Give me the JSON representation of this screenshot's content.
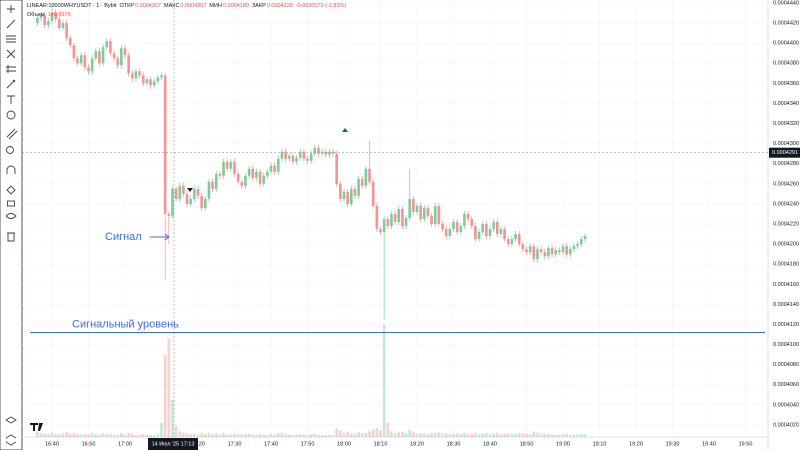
{
  "header": {
    "symbol": "LINEAR:10000WHYUSDT · 1 · Bybit",
    "fields": [
      {
        "label": "ОТКР",
        "value": "0.0004307"
      },
      {
        "label": "МАКС",
        "value": "0.0004307"
      },
      {
        "label": "МИН",
        "value": "0.0004180"
      },
      {
        "label": "ЗАКР",
        "value": "0.0004228"
      }
    ],
    "change": "-0.0000079 (-1.83%)",
    "volume_label": "Объем",
    "volume_value": "140.897K"
  },
  "chart_data": {
    "type": "candlestick",
    "up_color": "#7ccc9c",
    "down_color": "#f29494",
    "ylim": [
      0.0004008,
      0.0004443
    ],
    "yticks": [
      {
        "value": 0.000444,
        "label": "0.0004440"
      },
      {
        "value": 0.000442,
        "label": "0.0004420"
      },
      {
        "value": 0.00044,
        "label": "0.0004400"
      },
      {
        "value": 0.000438,
        "label": "0.0004380"
      },
      {
        "value": 0.000436,
        "label": "0.0004360"
      },
      {
        "value": 0.000434,
        "label": "0.0004340"
      },
      {
        "value": 0.000432,
        "label": "0.0004320"
      },
      {
        "value": 0.00043,
        "label": "0.0004300"
      },
      {
        "value": 0.000428,
        "label": "0.0004280"
      },
      {
        "value": 0.000426,
        "label": "0.0004260"
      },
      {
        "value": 0.000424,
        "label": "0.0004240"
      },
      {
        "value": 0.000422,
        "label": "0.0004220"
      },
      {
        "value": 0.00042,
        "label": "0.0004200"
      },
      {
        "value": 0.000418,
        "label": "0.0004180"
      },
      {
        "value": 0.000416,
        "label": "0.0004160"
      },
      {
        "value": 0.000414,
        "label": "0.0004140"
      },
      {
        "value": 0.000412,
        "label": "0.0004120"
      },
      {
        "value": 0.00041,
        "label": "0.0004100"
      },
      {
        "value": 0.000408,
        "label": "0.0004080"
      },
      {
        "value": 0.000406,
        "label": "0.0004060"
      },
      {
        "value": 0.000404,
        "label": "0.0004040"
      },
      {
        "value": 0.000402,
        "label": "0.0004020"
      }
    ],
    "xticks": [
      "16:40",
      "16:50",
      "17:00",
      "17:20",
      "17:30",
      "17:40",
      "17:50",
      "18:00",
      "18:10",
      "18:20",
      "18:30",
      "18:40",
      "18:50",
      "19:00",
      "19:10",
      "19:20",
      "19:30",
      "19:40",
      "19:50"
    ],
    "crosshair_label": "14 Июл '25   17:13",
    "last_price": {
      "value": 0.0004291,
      "label": "0.0004291"
    },
    "annotations": [
      {
        "text": "Сигнал"
      },
      {
        "text": "Сигнальный уровень",
        "value": 0.0004112
      }
    ],
    "x": [
      "16:36",
      "16:37",
      "16:38",
      "16:39",
      "16:40",
      "16:41",
      "16:42",
      "16:43",
      "16:44",
      "16:45",
      "16:46",
      "16:47",
      "16:48",
      "16:49",
      "16:50",
      "16:51",
      "16:52",
      "16:53",
      "16:54",
      "16:55",
      "16:56",
      "16:57",
      "16:58",
      "16:59",
      "17:00",
      "17:01",
      "17:02",
      "17:03",
      "17:04",
      "17:05",
      "17:06",
      "17:07",
      "17:08",
      "17:09",
      "17:10",
      "17:11",
      "17:12",
      "17:13",
      "17:14",
      "17:15",
      "17:16",
      "17:17",
      "17:18",
      "17:19",
      "17:20",
      "17:21",
      "17:22",
      "17:23",
      "17:24",
      "17:25",
      "17:26",
      "17:27",
      "17:28",
      "17:29",
      "17:30",
      "17:31",
      "17:32",
      "17:33",
      "17:34",
      "17:35",
      "17:36",
      "17:37",
      "17:38",
      "17:39",
      "17:40",
      "17:41",
      "17:42",
      "17:43",
      "17:44",
      "17:45",
      "17:46",
      "17:47",
      "17:48",
      "17:49",
      "17:50",
      "17:51",
      "17:52",
      "17:53",
      "17:54",
      "17:55",
      "17:56",
      "17:57",
      "17:58",
      "17:59",
      "18:00",
      "18:01",
      "18:02",
      "18:03",
      "18:04",
      "18:05",
      "18:06",
      "18:07",
      "18:08",
      "18:09",
      "18:10",
      "18:11",
      "18:12",
      "18:13",
      "18:14",
      "18:15",
      "18:16",
      "18:17",
      "18:18",
      "18:19",
      "18:20",
      "18:21",
      "18:22",
      "18:23",
      "18:24",
      "18:25",
      "18:26",
      "18:27",
      "18:28",
      "18:29",
      "18:30",
      "18:31",
      "18:32",
      "18:33",
      "18:34",
      "18:35",
      "18:36",
      "18:37",
      "18:38",
      "18:39",
      "18:40",
      "18:41",
      "18:42",
      "18:43",
      "18:44",
      "18:45",
      "18:46",
      "18:47",
      "18:48",
      "18:49",
      "18:50",
      "18:51",
      "18:52",
      "18:53",
      "18:54",
      "18:55",
      "18:56",
      "18:57",
      "18:58",
      "18:59",
      "19:00",
      "19:01",
      "19:02",
      "19:03",
      "19:04",
      "19:05",
      "19:06"
    ],
    "open": [
      0.000442,
      0.0004425,
      0.0004428,
      0.0004418,
      0.0004422,
      0.000443,
      0.0004424,
      0.0004415,
      0.000442,
      0.0004405,
      0.0004398,
      0.0004385,
      0.000438,
      0.0004388,
      0.0004376,
      0.0004372,
      0.0004385,
      0.0004392,
      0.000438,
      0.0004396,
      0.0004402,
      0.000439,
      0.0004385,
      0.0004378,
      0.0004395,
      0.0004388,
      0.000437,
      0.0004365,
      0.0004372,
      0.0004368,
      0.000436,
      0.0004364,
      0.0004358,
      0.0004362,
      0.0004366,
      0.0004368,
      0.000423,
      0.0004228,
      0.0004255,
      0.0004245,
      0.0004258,
      0.000425,
      0.000424,
      0.0004245,
      0.0004255,
      0.0004248,
      0.0004236,
      0.0004245,
      0.0004262,
      0.0004255,
      0.000427,
      0.0004268,
      0.0004282,
      0.0004275,
      0.0004282,
      0.000427,
      0.0004262,
      0.0004258,
      0.0004268,
      0.0004275,
      0.0004266,
      0.0004272,
      0.000426,
      0.0004268,
      0.0004272,
      0.0004278,
      0.0004272,
      0.0004285,
      0.0004292,
      0.0004285,
      0.0004288,
      0.0004282,
      0.0004286,
      0.0004292,
      0.0004285,
      0.0004283,
      0.000429,
      0.0004296,
      0.000429,
      0.0004292,
      0.0004289,
      0.0004292,
      0.000429,
      0.000426,
      0.0004245,
      0.0004252,
      0.000424,
      0.0004255,
      0.0004248,
      0.0004265,
      0.0004258,
      0.0004275,
      0.0004262,
      0.0004238,
      0.0004215,
      0.0004212,
      0.0004225,
      0.0004218,
      0.000423,
      0.0004222,
      0.0004235,
      0.0004218,
      0.0004226,
      0.0004245,
      0.0004232,
      0.0004238,
      0.0004225,
      0.0004236,
      0.0004228,
      0.000422,
      0.0004238,
      0.000422,
      0.0004215,
      0.0004208,
      0.0004215,
      0.0004222,
      0.0004212,
      0.0004218,
      0.000423,
      0.0004225,
      0.0004218,
      0.0004205,
      0.0004212,
      0.000422,
      0.0004208,
      0.0004215,
      0.0004222,
      0.000421,
      0.0004215,
      0.0004205,
      0.00042,
      0.0004205,
      0.000421,
      0.00042,
      0.0004195,
      0.0004192,
      0.0004198,
      0.0004185,
      0.0004195,
      0.0004192,
      0.0004188,
      0.0004196,
      0.000419,
      0.0004194,
      0.0004192,
      0.0004198,
      0.000419,
      0.0004195,
      0.0004198,
      0.00042,
      0.0004205
    ],
    "high": [
      0.0004428,
      0.0004431,
      0.0004431,
      0.0004425,
      0.000444,
      0.0004433,
      0.0004427,
      0.0004423,
      0.0004423,
      0.0004408,
      0.0004401,
      0.0004388,
      0.0004391,
      0.0004391,
      0.0004379,
      0.0004388,
      0.0004395,
      0.0004395,
      0.0004399,
      0.0004405,
      0.0004405,
      0.0004393,
      0.0004388,
      0.0004398,
      0.0004398,
      0.0004391,
      0.0004373,
      0.0004375,
      0.0004375,
      0.0004371,
      0.0004367,
      0.0004367,
      0.0004365,
      0.0004369,
      0.0004371,
      0.000437,
      0.0004233,
      0.0004258,
      0.0004258,
      0.0004261,
      0.0004261,
      0.0004253,
      0.0004248,
      0.0004258,
      0.0004258,
      0.0004251,
      0.0004248,
      0.0004265,
      0.0004265,
      0.0004273,
      0.0004273,
      0.0004285,
      0.0004285,
      0.0004285,
      0.0004285,
      0.0004273,
      0.0004265,
      0.0004271,
      0.0004278,
      0.0004278,
      0.0004275,
      0.0004275,
      0.0004271,
      0.0004275,
      0.0004281,
      0.0004281,
      0.0004288,
      0.0004295,
      0.0004295,
      0.0004291,
      0.0004291,
      0.0004289,
      0.0004295,
      0.0004295,
      0.0004288,
      0.0004293,
      0.0004299,
      0.0004299,
      0.0004295,
      0.0004295,
      0.0004295,
      0.0004295,
      0.0004293,
      0.0004263,
      0.0004255,
      0.0004255,
      0.0004258,
      0.0004258,
      0.0004268,
      0.0004268,
      0.0004278,
      0.0004303,
      0.0004265,
      0.0004241,
      0.0004218,
      0.0004228,
      0.0004228,
      0.0004233,
      0.0004233,
      0.0004238,
      0.0004238,
      0.0004229,
      0.0004275,
      0.0004248,
      0.0004241,
      0.0004241,
      0.0004239,
      0.0004239,
      0.0004231,
      0.0004241,
      0.0004241,
      0.0004223,
      0.0004218,
      0.0004218,
      0.0004225,
      0.0004225,
      0.0004221,
      0.0004233,
      0.0004233,
      0.0004228,
      0.0004221,
      0.0004215,
      0.0004223,
      0.0004223,
      0.0004218,
      0.0004225,
      0.0004225,
      0.0004218,
      0.0004218,
      0.0004208,
      0.0004208,
      0.0004213,
      0.0004213,
      0.0004203,
      0.0004198,
      0.0004201,
      0.0004201,
      0.0004198,
      0.0004198,
      0.0004195,
      0.0004199,
      0.0004199,
      0.0004197,
      0.0004197,
      0.0004201,
      0.0004201,
      0.0004198,
      0.0004201,
      0.0004203,
      0.0004208,
      0.0004211
    ],
    "low": [
      0.0004417,
      0.0004422,
      0.0004415,
      0.0004415,
      0.0004419,
      0.0004421,
      0.0004412,
      0.0004412,
      0.0004402,
      0.0004395,
      0.0004382,
      0.0004377,
      0.0004377,
      0.0004373,
      0.0004369,
      0.0004369,
      0.0004382,
      0.0004377,
      0.0004377,
      0.0004393,
      0.0004387,
      0.0004382,
      0.0004375,
      0.0004375,
      0.0004385,
      0.0004367,
      0.0004362,
      0.0004362,
      0.0004365,
      0.0004357,
      0.0004357,
      0.0004355,
      0.0004355,
      0.0004359,
      0.0004363,
      0.0004165,
      0.00042,
      0.0004225,
      0.0004242,
      0.0004242,
      0.0004247,
      0.0004237,
      0.0004237,
      0.0004242,
      0.0004245,
      0.0004233,
      0.0004233,
      0.0004242,
      0.0004252,
      0.0004252,
      0.0004265,
      0.0004265,
      0.0004272,
      0.0004272,
      0.0004267,
      0.0004259,
      0.0004255,
      0.0004255,
      0.0004265,
      0.0004263,
      0.0004263,
      0.0004257,
      0.0004257,
      0.0004265,
      0.0004269,
      0.0004269,
      0.0004269,
      0.0004282,
      0.0004282,
      0.0004282,
      0.0004279,
      0.0004279,
      0.0004283,
      0.0004282,
      0.000428,
      0.000428,
      0.0004287,
      0.0004287,
      0.0004287,
      0.0004286,
      0.0004286,
      0.0004287,
      0.0004257,
      0.0004242,
      0.0004242,
      0.0004237,
      0.0004237,
      0.0004245,
      0.0004245,
      0.0004255,
      0.0004255,
      0.0004259,
      0.0004235,
      0.0004212,
      0.0004209,
      0.0004125,
      0.0004215,
      0.0004215,
      0.0004219,
      0.0004219,
      0.0004215,
      0.0004215,
      0.0004223,
      0.0004229,
      0.0004229,
      0.0004222,
      0.0004222,
      0.0004225,
      0.0004217,
      0.0004217,
      0.0004217,
      0.0004212,
      0.0004205,
      0.0004205,
      0.0004212,
      0.0004209,
      0.0004209,
      0.0004215,
      0.0004222,
      0.0004215,
      0.0004202,
      0.0004202,
      0.0004209,
      0.0004205,
      0.0004205,
      0.0004212,
      0.0004207,
      0.0004207,
      0.0004202,
      0.0004197,
      0.0004197,
      0.0004202,
      0.0004197,
      0.0004192,
      0.0004189,
      0.0004189,
      0.0004182,
      0.0004182,
      0.0004189,
      0.0004185,
      0.0004185,
      0.0004187,
      0.0004187,
      0.0004189,
      0.0004189,
      0.0004187,
      0.0004187,
      0.0004192,
      0.0004195,
      0.0004197,
      0.0004202
    ],
    "close": [
      0.0004425,
      0.0004428,
      0.0004418,
      0.0004422,
      0.000443,
      0.0004424,
      0.0004415,
      0.000442,
      0.0004405,
      0.0004398,
      0.0004385,
      0.000438,
      0.0004388,
      0.0004376,
      0.0004372,
      0.0004385,
      0.0004392,
      0.000438,
      0.0004396,
      0.0004402,
      0.000439,
      0.0004385,
      0.0004378,
      0.0004395,
      0.0004388,
      0.000437,
      0.0004365,
      0.0004372,
      0.0004368,
      0.000436,
      0.0004364,
      0.0004358,
      0.0004362,
      0.0004366,
      0.0004368,
      0.000423,
      0.0004228,
      0.0004255,
      0.0004245,
      0.0004258,
      0.000425,
      0.000424,
      0.0004245,
      0.0004255,
      0.0004248,
      0.0004236,
      0.0004245,
      0.0004262,
      0.0004255,
      0.000427,
      0.0004268,
      0.0004282,
      0.0004275,
      0.0004282,
      0.000427,
      0.0004262,
      0.0004258,
      0.0004268,
      0.0004275,
      0.0004266,
      0.0004272,
      0.000426,
      0.0004268,
      0.0004272,
      0.0004278,
      0.0004272,
      0.0004285,
      0.0004292,
      0.0004285,
      0.0004288,
      0.0004282,
      0.0004286,
      0.0004292,
      0.0004285,
      0.0004283,
      0.000429,
      0.0004296,
      0.000429,
      0.0004292,
      0.0004289,
      0.0004292,
      0.000429,
      0.000426,
      0.0004245,
      0.0004252,
      0.000424,
      0.0004255,
      0.0004248,
      0.0004265,
      0.0004258,
      0.0004275,
      0.0004262,
      0.0004238,
      0.0004215,
      0.0004212,
      0.0004225,
      0.0004218,
      0.000423,
      0.0004222,
      0.0004235,
      0.0004218,
      0.0004226,
      0.0004245,
      0.0004232,
      0.0004238,
      0.0004225,
      0.0004236,
      0.0004228,
      0.000422,
      0.0004238,
      0.000422,
      0.0004215,
      0.0004208,
      0.0004215,
      0.0004222,
      0.0004212,
      0.0004218,
      0.000423,
      0.0004225,
      0.0004218,
      0.0004205,
      0.0004212,
      0.000422,
      0.0004208,
      0.0004215,
      0.0004222,
      0.000421,
      0.0004215,
      0.0004205,
      0.00042,
      0.0004205,
      0.000421,
      0.00042,
      0.0004195,
      0.0004192,
      0.0004198,
      0.0004185,
      0.0004195,
      0.0004192,
      0.0004188,
      0.0004196,
      0.000419,
      0.0004194,
      0.0004192,
      0.0004198,
      0.000419,
      0.0004195,
      0.0004198,
      0.00042,
      0.0004205,
      0.0004208
    ],
    "volume": [
      60,
      40,
      35,
      30,
      45,
      30,
      25,
      40,
      50,
      35,
      40,
      30,
      25,
      35,
      30,
      45,
      30,
      25,
      40,
      30,
      35,
      25,
      20,
      40,
      25,
      45,
      30,
      20,
      25,
      30,
      25,
      20,
      20,
      30,
      150,
      880,
      1050,
      400,
      120,
      60,
      45,
      40,
      30,
      35,
      25,
      40,
      30,
      45,
      30,
      40,
      25,
      45,
      30,
      25,
      35,
      30,
      25,
      30,
      35,
      25,
      20,
      30,
      25,
      20,
      35,
      25,
      40,
      45,
      30,
      25,
      20,
      25,
      30,
      25,
      20,
      30,
      35,
      25,
      20,
      20,
      25,
      20,
      90,
      70,
      40,
      55,
      35,
      30,
      50,
      35,
      45,
      60,
      80,
      95,
      70,
      1200,
      150,
      60,
      45,
      50,
      55,
      40,
      75,
      50,
      35,
      40,
      35,
      30,
      40,
      45,
      50,
      35,
      40,
      30,
      35,
      40,
      30,
      45,
      30,
      35,
      40,
      30,
      35,
      45,
      30,
      40,
      45,
      30,
      35,
      40,
      30,
      35,
      45,
      40,
      35,
      30,
      55,
      45,
      30,
      35,
      30,
      25,
      20,
      25,
      30,
      35,
      20,
      25,
      30,
      35,
      30
    ]
  }
}
